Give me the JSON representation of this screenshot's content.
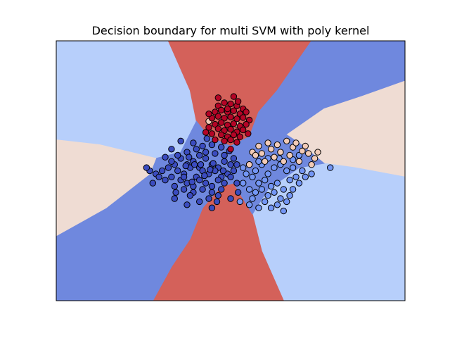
{
  "chart_data": {
    "type": "scatter",
    "title": "Decision boundary for multi SVM with poly kernel",
    "xlabel": "",
    "ylabel": "",
    "axis_ticks": "none",
    "grid": false,
    "legend": "none",
    "xlim": [
      -2.8,
      2.8
    ],
    "ylim": [
      -2.1,
      2.1
    ],
    "class_colors": {
      "class_0": "#3b4cc0",
      "class_1": "#7396f5",
      "class_2": "#f2cbb7",
      "class_3": "#b40426"
    },
    "region_colors": {
      "class_0": "#6f88de",
      "class_1": "#b7cffb",
      "class_2": "#efdcd3",
      "class_3": "#d4615a"
    },
    "series": [
      {
        "class": "class_0",
        "color": "#3b4cc0",
        "points": [
          [
            -0.9,
            0.1
          ],
          [
            -0.8,
            0.2
          ],
          [
            -0.7,
            0.1
          ],
          [
            -0.6,
            0.15
          ],
          [
            -0.5,
            0.05
          ],
          [
            -0.4,
            0.2
          ],
          [
            -0.3,
            0.1
          ],
          [
            -0.2,
            0.05
          ],
          [
            -0.1,
            0.15
          ],
          [
            0.0,
            0.1
          ],
          [
            -0.85,
            0.0
          ],
          [
            -0.75,
            -0.05
          ],
          [
            -0.65,
            0.05
          ],
          [
            -0.55,
            -0.1
          ],
          [
            -0.45,
            0.0
          ],
          [
            -0.35,
            -0.05
          ],
          [
            -0.25,
            0.0
          ],
          [
            -0.15,
            -0.1
          ],
          [
            -0.05,
            -0.05
          ],
          [
            0.05,
            0.0
          ],
          [
            -0.95,
            -0.1
          ],
          [
            -0.8,
            -0.15
          ],
          [
            -0.7,
            -0.2
          ],
          [
            -0.6,
            -0.25
          ],
          [
            -0.5,
            -0.15
          ],
          [
            -0.4,
            -0.2
          ],
          [
            -0.3,
            -0.25
          ],
          [
            -0.2,
            -0.15
          ],
          [
            -0.1,
            -0.2
          ],
          [
            0.0,
            -0.1
          ],
          [
            -0.7,
            0.3
          ],
          [
            -0.55,
            0.35
          ],
          [
            -0.4,
            0.3
          ],
          [
            -0.25,
            0.28
          ],
          [
            -0.1,
            0.25
          ],
          [
            -0.6,
            0.45
          ],
          [
            -0.45,
            0.4
          ],
          [
            -0.3,
            0.42
          ],
          [
            -0.15,
            0.38
          ],
          [
            -1.0,
            0.05
          ],
          [
            -1.1,
            0.0
          ],
          [
            -1.2,
            -0.05
          ],
          [
            -1.3,
            0.0
          ],
          [
            -1.15,
            -0.1
          ],
          [
            -1.05,
            -0.15
          ],
          [
            -0.9,
            -0.25
          ],
          [
            -0.75,
            -0.3
          ],
          [
            -0.6,
            -0.35
          ],
          [
            -0.45,
            -0.3
          ],
          [
            -0.3,
            -0.35
          ],
          [
            -0.15,
            -0.3
          ],
          [
            0.1,
            -0.2
          ],
          [
            -0.85,
            0.25
          ],
          [
            -0.5,
            0.25
          ],
          [
            -0.95,
            0.15
          ],
          [
            -0.65,
            -0.4
          ],
          [
            -0.35,
            -0.45
          ],
          [
            -0.2,
            -0.4
          ],
          [
            0.05,
            0.2
          ],
          [
            0.1,
            0.1
          ],
          [
            -0.75,
            -0.1
          ],
          [
            -0.58,
            0.1
          ],
          [
            -0.42,
            -0.08
          ],
          [
            -0.28,
            0.12
          ],
          [
            -0.12,
            0.0
          ],
          [
            -1.35,
            0.05
          ],
          [
            -0.5,
            -0.5
          ],
          [
            -0.7,
            -0.55
          ],
          [
            -0.9,
            -0.45
          ],
          [
            -0.3,
            -0.6
          ],
          [
            -0.8,
            0.48
          ],
          [
            0.12,
            -0.35
          ],
          [
            -0.02,
            0.32
          ],
          [
            -0.62,
            -0.18
          ],
          [
            -0.38,
            0.52
          ],
          [
            -1.05,
            0.22
          ],
          [
            -0.48,
            0.1
          ],
          [
            -0.88,
            -0.35
          ],
          [
            -0.22,
            -0.5
          ],
          [
            0.0,
            -0.45
          ],
          [
            -0.72,
            0.08
          ],
          [
            -0.33,
            0.02
          ],
          [
            -1.25,
            -0.2
          ],
          [
            -0.95,
            0.35
          ],
          [
            -0.67,
            0.22
          ]
        ]
      },
      {
        "class": "class_1",
        "color": "#7396f5",
        "points": [
          [
            0.3,
            0.1
          ],
          [
            0.4,
            0.0
          ],
          [
            0.5,
            0.1
          ],
          [
            0.6,
            -0.05
          ],
          [
            0.7,
            0.05
          ],
          [
            0.8,
            0.1
          ],
          [
            0.9,
            0.0
          ],
          [
            1.0,
            0.05
          ],
          [
            0.35,
            -0.1
          ],
          [
            0.45,
            -0.2
          ],
          [
            0.55,
            -0.15
          ],
          [
            0.65,
            -0.25
          ],
          [
            0.75,
            -0.2
          ],
          [
            0.85,
            -0.3
          ],
          [
            0.95,
            -0.15
          ],
          [
            1.05,
            -0.1
          ],
          [
            0.25,
            -0.05
          ],
          [
            0.4,
            -0.35
          ],
          [
            0.6,
            -0.4
          ],
          [
            0.8,
            -0.45
          ],
          [
            0.5,
            -0.3
          ],
          [
            0.7,
            -0.35
          ],
          [
            0.9,
            -0.5
          ],
          [
            1.1,
            -0.2
          ],
          [
            0.2,
            -0.2
          ],
          [
            0.3,
            -0.3
          ],
          [
            0.35,
            -0.45
          ],
          [
            0.55,
            -0.5
          ],
          [
            0.75,
            -0.55
          ],
          [
            0.95,
            -0.4
          ],
          [
            1.15,
            0.0
          ],
          [
            1.2,
            -0.1
          ],
          [
            1.3,
            -0.05
          ],
          [
            0.15,
            -0.5
          ],
          [
            0.3,
            -0.55
          ],
          [
            0.45,
            -0.6
          ],
          [
            0.65,
            -0.6
          ],
          [
            0.85,
            -0.65
          ],
          [
            1.0,
            -0.3
          ],
          [
            0.6,
            0.2
          ],
          [
            0.45,
            0.15
          ],
          [
            0.78,
            0.2
          ],
          [
            1.0,
            0.18
          ],
          [
            1.1,
            0.25
          ],
          [
            1.6,
            0.05
          ],
          [
            0.2,
            0.05
          ]
        ]
      },
      {
        "class": "class_2",
        "color": "#f2cbb7",
        "points": [
          [
            0.3,
            0.1
          ],
          [
            0.35,
            0.3
          ],
          [
            0.5,
            0.28
          ],
          [
            0.65,
            0.35
          ],
          [
            0.8,
            0.3
          ],
          [
            0.95,
            0.25
          ],
          [
            1.0,
            0.38
          ],
          [
            1.15,
            0.32
          ],
          [
            1.25,
            0.28
          ],
          [
            1.35,
            0.2
          ],
          [
            0.45,
            0.4
          ],
          [
            0.6,
            0.45
          ],
          [
            0.75,
            0.42
          ],
          [
            0.9,
            0.48
          ],
          [
            1.05,
            0.45
          ],
          [
            1.2,
            0.4
          ],
          [
            0.55,
            0.15
          ],
          [
            0.7,
            0.22
          ],
          [
            1.1,
            0.15
          ],
          [
            1.3,
            0.1
          ],
          [
            0.4,
            0.25
          ],
          [
            0.85,
            0.15
          ],
          [
            1.4,
            0.3
          ],
          [
            -0.35,
            0.8
          ],
          [
            0.1,
            0.75
          ]
        ]
      },
      {
        "class": "class_3",
        "color": "#b40426",
        "points": [
          [
            -0.2,
            1.05
          ],
          [
            -0.1,
            1.1
          ],
          [
            0.0,
            1.08
          ],
          [
            0.1,
            1.05
          ],
          [
            0.2,
            1.0
          ],
          [
            -0.25,
            0.95
          ],
          [
            -0.15,
            0.98
          ],
          [
            -0.05,
            0.95
          ],
          [
            0.05,
            0.97
          ],
          [
            0.15,
            0.92
          ],
          [
            -0.3,
            0.85
          ],
          [
            -0.2,
            0.88
          ],
          [
            -0.1,
            0.85
          ],
          [
            0.0,
            0.87
          ],
          [
            0.1,
            0.84
          ],
          [
            0.2,
            0.86
          ],
          [
            0.3,
            0.82
          ],
          [
            -0.25,
            0.75
          ],
          [
            -0.15,
            0.78
          ],
          [
            -0.05,
            0.74
          ],
          [
            0.05,
            0.76
          ],
          [
            0.15,
            0.72
          ],
          [
            0.25,
            0.75
          ],
          [
            -0.35,
            0.7
          ],
          [
            -0.2,
            0.68
          ],
          [
            -0.1,
            0.65
          ],
          [
            0.0,
            0.67
          ],
          [
            0.1,
            0.63
          ],
          [
            0.2,
            0.66
          ],
          [
            -0.3,
            0.6
          ],
          [
            -0.15,
            0.58
          ],
          [
            -0.05,
            0.55
          ],
          [
            0.05,
            0.58
          ],
          [
            0.15,
            0.55
          ],
          [
            -0.25,
            0.5
          ],
          [
            -0.1,
            0.48
          ],
          [
            0.0,
            0.5
          ],
          [
            0.1,
            0.46
          ],
          [
            -0.2,
            1.18
          ],
          [
            0.05,
            1.2
          ],
          [
            0.25,
            0.95
          ],
          [
            -0.35,
            0.92
          ],
          [
            0.28,
            0.6
          ],
          [
            0.0,
            0.35
          ],
          [
            -0.4,
            0.62
          ],
          [
            -0.05,
            1.0
          ],
          [
            0.12,
            1.12
          ]
        ]
      }
    ]
  }
}
